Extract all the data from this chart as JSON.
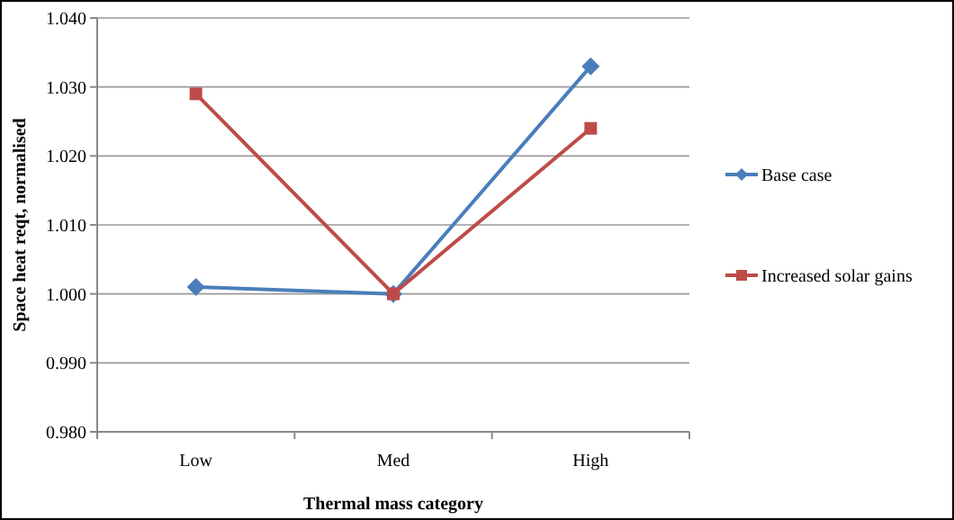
{
  "chart_data": {
    "type": "line",
    "xlabel": "Thermal mass category",
    "ylabel": "Space heat reqt, normalised",
    "categories": [
      "Low",
      "Med",
      "High"
    ],
    "series": [
      {
        "name": "Base case",
        "color": "#4a7ebb",
        "marker": "diamond",
        "values": [
          1.001,
          1.0,
          1.033
        ]
      },
      {
        "name": "Increased solar gains",
        "color": "#be4b48",
        "marker": "square",
        "values": [
          1.029,
          1.0,
          1.024
        ]
      }
    ],
    "ylim": [
      0.98,
      1.04
    ],
    "yticks": [
      {
        "value": 0.98,
        "label": "0.980"
      },
      {
        "value": 0.99,
        "label": "0.990"
      },
      {
        "value": 1.0,
        "label": "1.000"
      },
      {
        "value": 1.01,
        "label": "1.010"
      },
      {
        "value": 1.02,
        "label": "1.020"
      },
      {
        "value": 1.03,
        "label": "1.030"
      },
      {
        "value": 1.04,
        "label": "1.040"
      }
    ],
    "grid": "y",
    "legend": "right"
  }
}
